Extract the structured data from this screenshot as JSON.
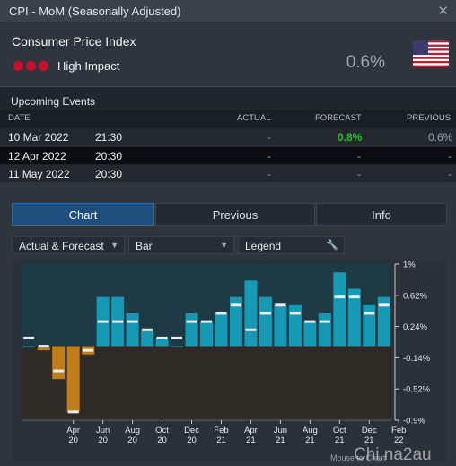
{
  "window": {
    "title": "CPI - MoM (Seasonally Adjusted)"
  },
  "event": {
    "name": "Consumer Price Index",
    "impact": "High Impact",
    "actual": "0.6%"
  },
  "upcoming": {
    "heading": "Upcoming Events",
    "columns": [
      "DATE",
      "ACTUAL",
      "FORECAST",
      "PREVIOUS"
    ],
    "rows": [
      {
        "date": "10 Mar 2022",
        "time": "21:30",
        "actual": "-",
        "forecast": "0.8%",
        "previous": "0.6%"
      },
      {
        "date": "12 Apr 2022",
        "time": "20:30",
        "actual": "-",
        "forecast": "-",
        "previous": "-"
      },
      {
        "date": "11 May 2022",
        "time": "20:30",
        "actual": "-",
        "forecast": "-",
        "previous": "-"
      }
    ]
  },
  "tabs": {
    "chart": "Chart",
    "previous": "Previous",
    "info": "Info"
  },
  "controls": {
    "series": "Actual & Forecast",
    "type": "Bar",
    "legend": "Legend"
  },
  "colors": {
    "accent": "#1e4e7e",
    "positive_bar": "#1599b4",
    "negative_bar": "#c07d18",
    "forecast_green": "#21c421",
    "high_impact": "#c8102e"
  },
  "chart_data": {
    "type": "bar",
    "y_ticks": [
      "1%",
      "0.62%",
      "0.24%",
      "-0.14%",
      "-0.52%",
      "-0.9%"
    ],
    "ylim": [
      -0.9,
      1.0
    ],
    "x_tick_labels": [
      {
        "month": "Apr",
        "year": "20"
      },
      {
        "month": "Jun",
        "year": "20"
      },
      {
        "month": "Aug",
        "year": "20"
      },
      {
        "month": "Oct",
        "year": "20"
      },
      {
        "month": "Dec",
        "year": "20"
      },
      {
        "month": "Feb",
        "year": "21"
      },
      {
        "month": "Apr",
        "year": "21"
      },
      {
        "month": "Jun",
        "year": "21"
      },
      {
        "month": "Aug",
        "year": "21"
      },
      {
        "month": "Oct",
        "year": "21"
      },
      {
        "month": "Dec",
        "year": "21"
      },
      {
        "month": "Feb",
        "year": "22"
      }
    ],
    "series": [
      {
        "values": [
          0.0,
          -0.05,
          -0.4,
          -0.8,
          -0.1,
          0.6,
          0.6,
          0.4,
          0.2,
          0.1,
          0.0,
          0.4,
          0.3,
          0.4,
          0.6,
          0.8,
          0.6,
          0.5,
          0.5,
          0.3,
          0.4,
          0.9,
          0.7,
          0.5,
          0.6
        ]
      },
      {
        "values": [
          0.1,
          0.0,
          -0.3,
          -0.8,
          -0.05,
          0.3,
          0.3,
          0.3,
          0.2,
          0.1,
          0.1,
          0.3,
          0.3,
          0.4,
          0.5,
          0.2,
          0.4,
          0.5,
          0.4,
          0.3,
          0.3,
          0.6,
          0.6,
          0.4,
          0.5
        ]
      }
    ]
  },
  "footer": {
    "note": "Mouse to Chart"
  },
  "watermark": "Chi.na2au"
}
